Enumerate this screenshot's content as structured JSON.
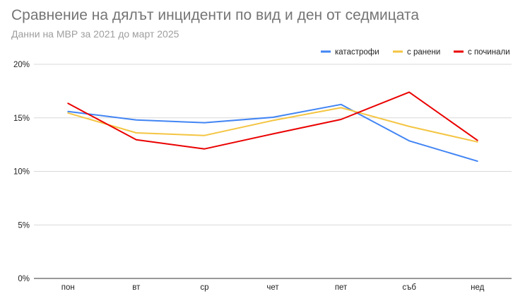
{
  "chart_data": {
    "type": "line",
    "title": "Сравнение на дялът инциденти по вид и ден от седмицата",
    "subtitle": "Данни на МВР за 2021 до март 2025",
    "categories": [
      "пон",
      "вт",
      "ср",
      "чет",
      "пет",
      "съб",
      "нед"
    ],
    "ylim": [
      0,
      20
    ],
    "yticks": [
      0,
      5,
      10,
      15,
      20
    ],
    "ytick_labels": [
      "0%",
      "5%",
      "10%",
      "15%",
      "20%"
    ],
    "grid": true,
    "legend_position": "top-right",
    "series": [
      {
        "name": "катастрофи",
        "color": "#4285f4",
        "values": [
          15.6,
          14.8,
          14.55,
          15.05,
          16.25,
          12.85,
          10.95
        ]
      },
      {
        "name": "с ранени",
        "color": "#f4c542",
        "values": [
          15.45,
          13.6,
          13.35,
          14.75,
          15.95,
          14.2,
          12.75
        ]
      },
      {
        "name": "с починали",
        "color": "#ea0000",
        "values": [
          16.35,
          12.95,
          12.1,
          13.5,
          14.85,
          17.4,
          12.9
        ]
      }
    ]
  }
}
